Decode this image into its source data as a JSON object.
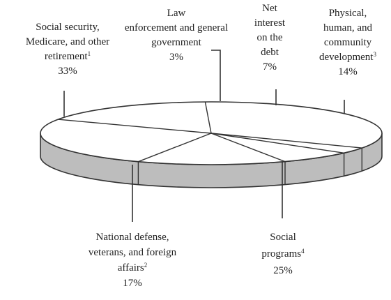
{
  "chart_data": {
    "type": "pie",
    "style": "3d-exploded-disc",
    "slices": [
      {
        "label_lines": [
          "Social security,",
          "Medicare, and other",
          "retirement"
        ],
        "footnote": "1",
        "value": 33,
        "value_label": "33%"
      },
      {
        "label_lines": [
          "Law",
          "enforcement and general",
          "government"
        ],
        "footnote": "",
        "value": 3,
        "value_label": "3%"
      },
      {
        "label_lines": [
          "Net",
          "interest",
          "on the",
          "debt"
        ],
        "footnote": "",
        "value": 7,
        "value_label": "7%"
      },
      {
        "label_lines": [
          "Physical,",
          "human, and",
          "community",
          "development"
        ],
        "footnote": "3",
        "value": 14,
        "value_label": "14%"
      },
      {
        "label_lines": [
          "Social",
          "programs"
        ],
        "footnote": "4",
        "value": 25,
        "value_label": "25%"
      },
      {
        "label_lines": [
          "National defense,",
          "veterans, and foreign",
          "affairs"
        ],
        "footnote": "2",
        "value": 17,
        "value_label": "17%"
      }
    ],
    "colors": {
      "top_face": "#ffffff",
      "side_face": "#bdbdbd",
      "outline": "#333333"
    }
  }
}
